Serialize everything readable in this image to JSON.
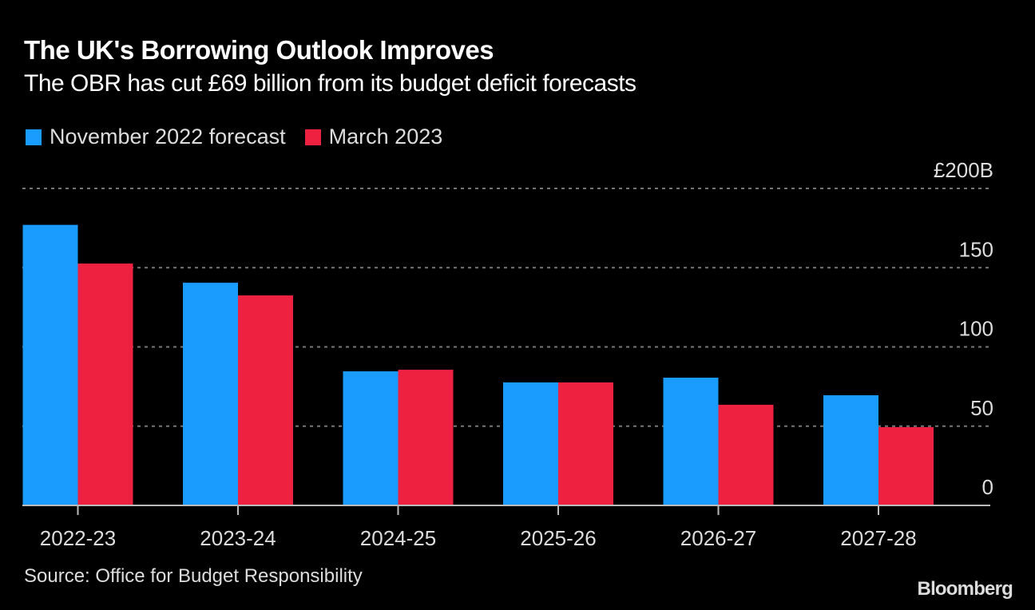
{
  "chart_data": {
    "type": "bar",
    "title": "The UK's Borrowing Outlook Improves",
    "subtitle": "The OBR has cut £69 billion from its budget deficit forecasts",
    "xlabel": "",
    "ylabel": "",
    "categories": [
      "2022-23",
      "2023-24",
      "2024-25",
      "2025-26",
      "2026-27",
      "2027-28"
    ],
    "series": [
      {
        "name": "November 2022 forecast",
        "color": "#1a9cff",
        "values": [
          177,
          140.5,
          84.6,
          77.6,
          80.6,
          69.5
        ]
      },
      {
        "name": "March 2023",
        "color": "#ee2240",
        "values": [
          152.6,
          132.5,
          85.6,
          77.6,
          63.5,
          49.4
        ]
      }
    ],
    "ylim": [
      0,
      200
    ],
    "yticks": [
      0,
      50,
      100,
      150,
      200
    ],
    "ytick_labels": [
      "0",
      "50",
      "100",
      "150",
      "£200B"
    ],
    "grid": true,
    "legend_position": "top-left",
    "source": "Source: Office for Budget Responsibility"
  },
  "branding": "Bloomberg"
}
